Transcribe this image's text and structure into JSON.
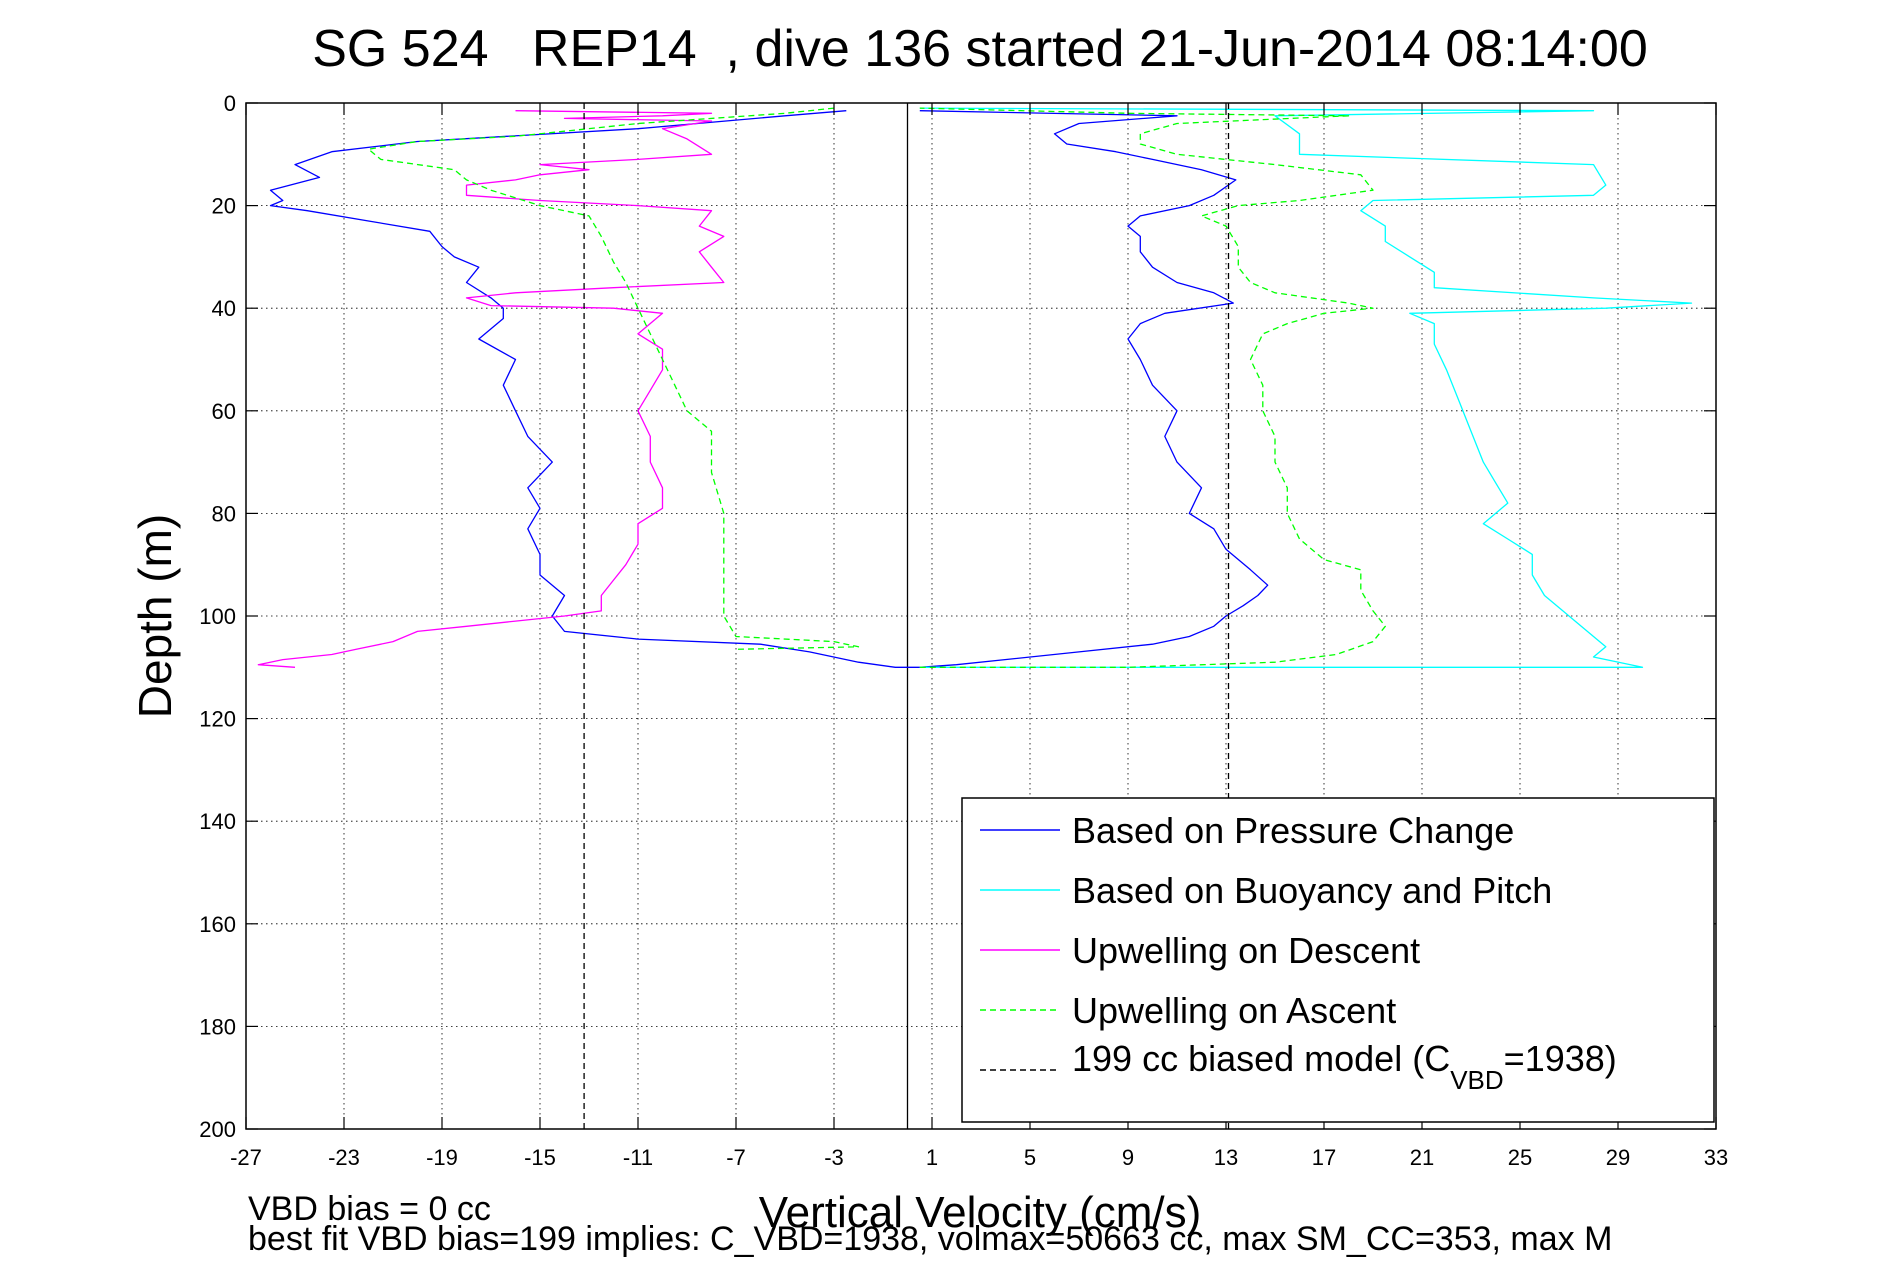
{
  "chart_data": {
    "type": "line",
    "title": "SG 524   REP14  , dive 136 started 21-Jun-2014 08:14:00",
    "xlabel": "Vertical Velocity (cm/s)",
    "ylabel": "Depth (m)",
    "xlim": [
      -27,
      33
    ],
    "ylim": [
      0,
      200
    ],
    "y_reversed": true,
    "grid": true,
    "legend_position": "bottom-right",
    "x_ticks": [
      "-27",
      "-23",
      "-19",
      "-15",
      "-11",
      "-7",
      "-3",
      "1",
      "5",
      "9",
      "13",
      "17",
      "21",
      "25",
      "29",
      "33"
    ],
    "y_ticks": [
      "0",
      "20",
      "40",
      "60",
      "80",
      "100",
      "120",
      "140",
      "160",
      "180",
      "200"
    ],
    "series": [
      {
        "name": "Based on Pressure Change",
        "color": "#0000ff",
        "style": "solid",
        "points": [
          [
            [
              -2.5,
              1.5
            ],
            [
              -5,
              2.5
            ],
            [
              -11,
              5
            ],
            [
              -20,
              7.5
            ],
            [
              -23.5,
              9.5
            ],
            [
              -25,
              12
            ],
            [
              -24,
              14.5
            ],
            [
              -26,
              17
            ],
            [
              -25.5,
              19
            ],
            [
              -26,
              20
            ],
            [
              -24.5,
              21
            ],
            [
              -22,
              23
            ],
            [
              -19.5,
              25
            ],
            [
              -19,
              28
            ],
            [
              -18.5,
              30
            ],
            [
              -17.5,
              32
            ],
            [
              -18,
              35
            ],
            [
              -17,
              38
            ],
            [
              -16.5,
              40
            ],
            [
              -16.5,
              42
            ],
            [
              -17.5,
              46
            ],
            [
              -16,
              50
            ],
            [
              -16.5,
              55
            ],
            [
              -16,
              60
            ],
            [
              -15.5,
              65
            ],
            [
              -14.5,
              70
            ],
            [
              -15.5,
              75
            ],
            [
              -15,
              79
            ],
            [
              -15.5,
              83
            ],
            [
              -15,
              88
            ],
            [
              -15,
              92
            ],
            [
              -14,
              96
            ],
            [
              -14.5,
              100
            ],
            [
              -14,
              103
            ],
            [
              -11,
              104.5
            ],
            [
              -6,
              105.5
            ],
            [
              -4,
              107
            ],
            [
              -2,
              109
            ],
            [
              -0.5,
              110
            ],
            [
              0.5,
              110
            ]
          ],
          [
            [
              0.5,
              110
            ],
            [
              2,
              109.5
            ],
            [
              7,
              107
            ],
            [
              10,
              105.5
            ],
            [
              11.5,
              104
            ],
            [
              12.5,
              102
            ],
            [
              13,
              100
            ],
            [
              13.7,
              98
            ],
            [
              14.3,
              96
            ],
            [
              14.7,
              94
            ],
            [
              14,
              91
            ],
            [
              13,
              87
            ],
            [
              12.5,
              83
            ],
            [
              11.5,
              80
            ],
            [
              12,
              75
            ],
            [
              11,
              70
            ],
            [
              10.5,
              65
            ],
            [
              11,
              60
            ],
            [
              10,
              55
            ],
            [
              9.5,
              50
            ],
            [
              9,
              46
            ],
            [
              9.5,
              43
            ],
            [
              10.5,
              41
            ],
            [
              13.3,
              39
            ],
            [
              12.5,
              37
            ],
            [
              11,
              35
            ],
            [
              10,
              32
            ],
            [
              9.5,
              29
            ],
            [
              9.5,
              26
            ],
            [
              9,
              24
            ],
            [
              9.5,
              22
            ],
            [
              11.5,
              20
            ],
            [
              12.5,
              18
            ],
            [
              13.4,
              15
            ],
            [
              12,
              13
            ],
            [
              10,
              11
            ],
            [
              8.5,
              9.5
            ],
            [
              6.5,
              8
            ],
            [
              6,
              6
            ],
            [
              7,
              4
            ],
            [
              11,
              2.5
            ],
            [
              0.5,
              1.5
            ]
          ]
        ]
      },
      {
        "name": "Based on Buoyancy and Pitch",
        "color": "#00ffff",
        "style": "solid",
        "points": [
          [
            [
              0.5,
              1
            ],
            [
              28,
              1.5
            ],
            [
              15,
              2.5
            ],
            [
              16,
              6
            ],
            [
              16,
              10
            ],
            [
              28,
              12
            ],
            [
              28.5,
              16
            ],
            [
              28,
              18
            ],
            [
              19,
              19
            ],
            [
              18.5,
              21
            ],
            [
              19.5,
              24
            ],
            [
              19.5,
              27
            ],
            [
              20.5,
              30
            ],
            [
              21.5,
              33
            ],
            [
              21.5,
              36
            ],
            [
              28,
              38
            ],
            [
              32,
              39
            ],
            [
              28.5,
              40
            ],
            [
              20.5,
              41
            ],
            [
              21.5,
              43
            ],
            [
              21.5,
              47
            ],
            [
              22,
              52
            ],
            [
              22.5,
              58
            ],
            [
              23,
              64
            ],
            [
              23.5,
              70
            ],
            [
              24,
              74
            ],
            [
              24.5,
              78
            ],
            [
              23.5,
              82
            ],
            [
              24.5,
              85
            ],
            [
              25.5,
              88
            ],
            [
              25.5,
              92
            ],
            [
              26,
              96
            ],
            [
              27,
              100
            ],
            [
              28,
              104
            ],
            [
              28.5,
              106
            ],
            [
              28,
              108
            ],
            [
              30,
              110
            ],
            [
              0.5,
              110
            ]
          ]
        ]
      },
      {
        "name": "Upwelling on Descent",
        "color": "#ff00ff",
        "style": "solid",
        "points": [
          [
            [
              -16,
              1.5
            ],
            [
              -8,
              2
            ],
            [
              -10,
              2.5
            ],
            [
              -14,
              3
            ],
            [
              -8,
              3.5
            ],
            [
              -10,
              5
            ],
            [
              -9,
              7
            ],
            [
              -8,
              10
            ],
            [
              -11,
              11
            ],
            [
              -15,
              12
            ],
            [
              -13,
              13
            ],
            [
              -15,
              14
            ],
            [
              -16,
              15
            ],
            [
              -18,
              16
            ],
            [
              -18,
              18
            ],
            [
              -15,
              19
            ],
            [
              -11,
              20
            ],
            [
              -8,
              21
            ],
            [
              -8.5,
              24
            ],
            [
              -7.5,
              26
            ],
            [
              -8.5,
              29
            ],
            [
              -8,
              32
            ],
            [
              -7.5,
              35
            ],
            [
              -12,
              36
            ],
            [
              -16,
              37
            ],
            [
              -18,
              38
            ],
            [
              -17,
              39.5
            ],
            [
              -12,
              40
            ],
            [
              -10,
              41
            ],
            [
              -11,
              45
            ],
            [
              -10,
              48
            ],
            [
              -10,
              52
            ],
            [
              -10.5,
              56
            ],
            [
              -11,
              60
            ],
            [
              -10.5,
              65
            ],
            [
              -10.5,
              70
            ],
            [
              -10,
              75
            ],
            [
              -10,
              79
            ],
            [
              -11,
              82
            ],
            [
              -11,
              86
            ],
            [
              -11.5,
              90
            ],
            [
              -12,
              93
            ],
            [
              -12.5,
              96
            ],
            [
              -12.5,
              99
            ],
            [
              -14,
              100
            ],
            [
              -16,
              101
            ],
            [
              -18,
              102
            ],
            [
              -20,
              103
            ],
            [
              -21,
              105
            ],
            [
              -22.5,
              106.5
            ],
            [
              -23.5,
              107.5
            ],
            [
              -25.5,
              108.5
            ],
            [
              -26.5,
              109.5
            ],
            [
              -25,
              110
            ]
          ]
        ]
      },
      {
        "name": "Upwelling on Ascent",
        "color": "#00ff00",
        "style": "dashed",
        "points": [
          [
            [
              0.5,
              110
            ],
            [
              9,
              110
            ],
            [
              15,
              109
            ],
            [
              17.5,
              107.5
            ],
            [
              19,
              105
            ],
            [
              19.5,
              102
            ],
            [
              19,
              99
            ],
            [
              18.5,
              95
            ],
            [
              18.5,
              91
            ],
            [
              17,
              89
            ],
            [
              16,
              85
            ],
            [
              15.5,
              80
            ],
            [
              15.5,
              75
            ],
            [
              15,
              70
            ],
            [
              15,
              65
            ],
            [
              14.5,
              60
            ],
            [
              14.5,
              55
            ],
            [
              14,
              50
            ],
            [
              14.5,
              45
            ],
            [
              15.5,
              43
            ],
            [
              17,
              41
            ],
            [
              19,
              40
            ],
            [
              18,
              39
            ],
            [
              15,
              37
            ],
            [
              14,
              35
            ],
            [
              13.5,
              32
            ],
            [
              13.5,
              28
            ],
            [
              13,
              24
            ],
            [
              12,
              22
            ],
            [
              13.5,
              20
            ],
            [
              16,
              19
            ],
            [
              19,
              17
            ],
            [
              18.5,
              14
            ],
            [
              15,
              12
            ],
            [
              11,
              10
            ],
            [
              9.5,
              8
            ],
            [
              9.5,
              6
            ],
            [
              11,
              4
            ],
            [
              18,
              2.5
            ],
            [
              9,
              2
            ],
            [
              0.5,
              1
            ]
          ],
          [
            [
              -3,
              1
            ],
            [
              -5,
              2
            ],
            [
              -11,
              4
            ],
            [
              -14,
              5.5
            ],
            [
              -16,
              6.5
            ],
            [
              -20,
              7.5
            ],
            [
              -22,
              9
            ],
            [
              -21.5,
              11
            ],
            [
              -18.5,
              13
            ],
            [
              -18,
              15
            ],
            [
              -17,
              17
            ],
            [
              -15,
              20
            ],
            [
              -13,
              22
            ],
            [
              -12.5,
              26
            ],
            [
              -12,
              31
            ],
            [
              -11.5,
              35
            ],
            [
              -11,
              40
            ],
            [
              -10.5,
              45
            ],
            [
              -10,
              50
            ],
            [
              -9.5,
              55
            ],
            [
              -9,
              60
            ],
            [
              -8,
              64
            ],
            [
              -8,
              68
            ],
            [
              -8,
              72
            ],
            [
              -7.5,
              80
            ],
            [
              -7.5,
              88
            ],
            [
              -7.5,
              95
            ],
            [
              -7.5,
              100
            ],
            [
              -7,
              104
            ],
            [
              -3,
              105
            ],
            [
              -2,
              106
            ],
            [
              -7,
              106.5
            ]
          ]
        ]
      },
      {
        "name": "199 cc biased model (CVBD=1938)",
        "color": "#000000",
        "style": "dashed",
        "points": [
          [
            [
              -13.2,
              0
            ],
            [
              -13.2,
              200
            ]
          ],
          [
            [
              13.1,
              0
            ],
            [
              13.1,
              200
            ]
          ]
        ]
      }
    ]
  },
  "legend": {
    "entries": [
      {
        "text": "Based on Pressure Change"
      },
      {
        "text": "Based on Buoyancy and Pitch"
      },
      {
        "text": "Upwelling on Descent"
      },
      {
        "text": "Upwelling on Ascent"
      },
      {
        "text_pre": "199 cc biased model (C",
        "text_sub": "VBD",
        "text_post": "=1938)"
      }
    ]
  },
  "notes": {
    "line1": "VBD bias = 0 cc",
    "line2": "best fit VBD bias=199 implies: C_VBD=1938, volmax=50663 cc, max SM_CC=353, max M"
  }
}
